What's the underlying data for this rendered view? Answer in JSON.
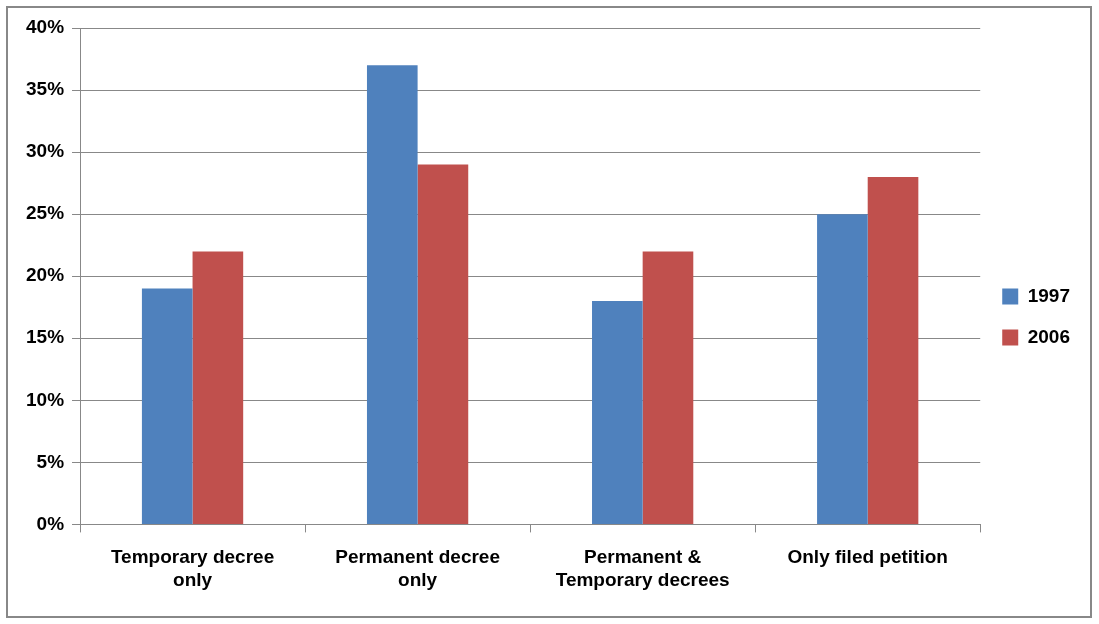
{
  "chart_data": {
    "type": "bar",
    "categories": [
      "Temporary decree only",
      "Permanent decree only",
      "Permanent & Temporary decrees",
      "Only filed petition"
    ],
    "series": [
      {
        "name": "1997",
        "color": "#4f81bd",
        "values": [
          19,
          37,
          18,
          25
        ]
      },
      {
        "name": "2006",
        "color": "#c0504d",
        "values": [
          22,
          29,
          22,
          28
        ]
      }
    ],
    "ylim": [
      0,
      40
    ],
    "yticks": [
      {
        "value": 0,
        "label": "0%"
      },
      {
        "value": 5,
        "label": "5%"
      },
      {
        "value": 10,
        "label": "10%"
      },
      {
        "value": 15,
        "label": "15%"
      },
      {
        "value": 20,
        "label": "20%"
      },
      {
        "value": 25,
        "label": "25%"
      },
      {
        "value": 30,
        "label": "30%"
      },
      {
        "value": 35,
        "label": "35%"
      },
      {
        "value": 40,
        "label": "40%"
      }
    ],
    "grid": "y",
    "legend": "right"
  }
}
